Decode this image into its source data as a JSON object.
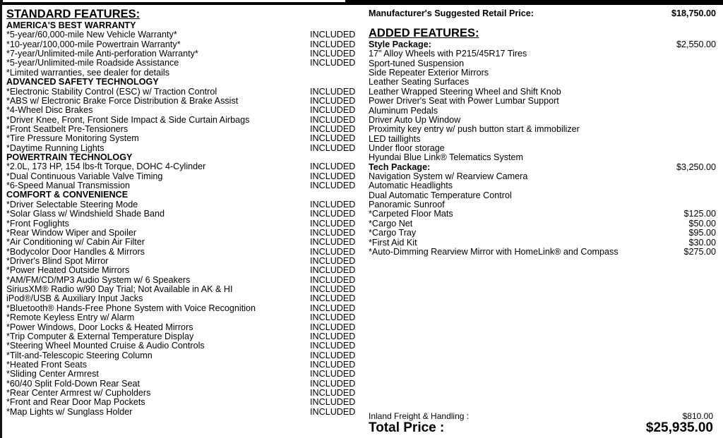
{
  "standard": {
    "title": "STANDARD FEATURES:",
    "sections": [
      {
        "heading": "AMERICA'S BEST WARRANTY",
        "items": [
          {
            "text": "*5-year/60,000-mile New Vehicle Warranty*",
            "status": "INCLUDED"
          },
          {
            "text": "*10-year/100,000-mile Powertrain Warranty*",
            "status": "INCLUDED"
          },
          {
            "text": "*7-year/Unlimited-mile Anti-perforation Warranty*",
            "status": "INCLUDED"
          },
          {
            "text": "*5-year/Unlimited-mile Roadside Assistance",
            "status": "INCLUDED"
          },
          {
            "text": "*Limited warranties, see dealer for details",
            "status": ""
          }
        ]
      },
      {
        "heading": "ADVANCED SAFETY TECHNOLOGY",
        "items": [
          {
            "text": "*Electronic Stability Control (ESC) w/ Traction Control",
            "status": "INCLUDED"
          },
          {
            "text": "*ABS w/ Electronic Brake Force Distribution & Brake Assist",
            "status": "INCLUDED"
          },
          {
            "text": "*4-Wheel Disc Brakes",
            "status": "INCLUDED"
          },
          {
            "text": "*Driver Knee, Front, Front Side Impact & Side Curtain Airbags",
            "status": "INCLUDED"
          },
          {
            "text": "*Front Seatbelt Pre-Tensioners",
            "status": "INCLUDED"
          },
          {
            "text": "*Tire Pressure Monitoring System",
            "status": "INCLUDED"
          },
          {
            "text": "*Daytime Running Lights",
            "status": "INCLUDED"
          }
        ]
      },
      {
        "heading": "POWERTRAIN TECHNOLOGY",
        "items": [
          {
            "text": "*2.0L, 173 HP, 154 lbs-ft Torque, DOHC 4-Cylinder",
            "status": "INCLUDED"
          },
          {
            "text": "*Dual Continuous Variable Valve Timing",
            "status": "INCLUDED"
          },
          {
            "text": "*6-Speed Manual Transmission",
            "status": "INCLUDED"
          }
        ]
      },
      {
        "heading": "COMFORT & CONVENIENCE",
        "items": [
          {
            "text": "*Driver Selectable Steering Mode",
            "status": "INCLUDED"
          },
          {
            "text": "*Solar Glass w/ Windshield Shade Band",
            "status": "INCLUDED"
          },
          {
            "text": "*Front Foglights",
            "status": "INCLUDED"
          },
          {
            "text": "*Rear Window Wiper and Spoiler",
            "status": "INCLUDED"
          },
          {
            "text": "*Air Conditioning w/ Cabin Air Filter",
            "status": "INCLUDED"
          },
          {
            "text": "*Bodycolor Door Handles & Mirrors",
            "status": "INCLUDED"
          },
          {
            "text": "*Driver's Blind Spot Mirror",
            "status": "INCLUDED"
          },
          {
            "text": "*Power Heated Outside Mirrors",
            "status": "INCLUDED"
          },
          {
            "text": "*AM/FM/CD/MP3 Audio System w/ 6 Speakers",
            "status": "INCLUDED"
          },
          {
            "text": "SiriusXM® Radio w/90 Day Trial; Not Available in AK & HI",
            "status": "INCLUDED"
          },
          {
            "text": "iPod®/USB & Auxiliary Input Jacks",
            "status": "INCLUDED"
          },
          {
            "text": "*Bluetooth® Hands-Free Phone System with Voice Recognition",
            "status": "INCLUDED"
          },
          {
            "text": "*Remote Keyless Entry w/ Alarm",
            "status": "INCLUDED"
          },
          {
            "text": "*Power Windows, Door Locks & Heated Mirrors",
            "status": "INCLUDED"
          },
          {
            "text": "*Trip Computer & External Temperature Display",
            "status": "INCLUDED"
          },
          {
            "text": "*Steering Wheel Mounted Cruise & Audio Controls",
            "status": "INCLUDED"
          },
          {
            "text": "*Tilt-and-Telescopic Steering Column",
            "status": "INCLUDED"
          },
          {
            "text": "*Heated Front Seats",
            "status": "INCLUDED"
          },
          {
            "text": "*Sliding Center Armrest",
            "status": "INCLUDED"
          },
          {
            "text": "*60/40 Split Fold-Down Rear Seat",
            "status": "INCLUDED"
          },
          {
            "text": "*Rear Center Armrest w/ Cupholders",
            "status": "INCLUDED"
          },
          {
            "text": "*Front and Rear Door Map Pockets",
            "status": "INCLUDED"
          },
          {
            "text": "*Map Lights w/ Sunglass Holder",
            "status": "INCLUDED"
          }
        ]
      }
    ]
  },
  "msrp": {
    "label": "Manufacturer's Suggested Retail Price:",
    "value": "$18,750.00"
  },
  "added": {
    "title": "ADDED FEATURES:",
    "rows": [
      {
        "text": "Style Package:",
        "price": "$2,550.00",
        "bold": true
      },
      {
        "text": "17\" Alloy Wheels with P215/45R17 Tires",
        "price": ""
      },
      {
        "text": "Sport-tuned Suspension",
        "price": ""
      },
      {
        "text": "Side Repeater Exterior Mirrors",
        "price": ""
      },
      {
        "text": "Leather Seating Surfaces",
        "price": ""
      },
      {
        "text": "Leather Wrapped Steering Wheel and Shift Knob",
        "price": ""
      },
      {
        "text": "Power Driver's Seat with Power Lumbar Support",
        "price": ""
      },
      {
        "text": "Aluminum Pedals",
        "price": ""
      },
      {
        "text": "Driver Auto Up Window",
        "price": ""
      },
      {
        "text": "Proximity key entry w/ push button start & immobilizer",
        "price": ""
      },
      {
        "text": "LED taillights",
        "price": ""
      },
      {
        "text": "Under floor storage",
        "price": ""
      },
      {
        "text": "Hyundai Blue Link® Telematics System",
        "price": ""
      },
      {
        "text": "Tech Package:",
        "price": "$3,250.00",
        "bold": true
      },
      {
        "text": "Navigation System w/ Rearview Camera",
        "price": ""
      },
      {
        "text": "Automatic Headlights",
        "price": ""
      },
      {
        "text": "Dual Automatic Temperature Control",
        "price": ""
      },
      {
        "text": "Panoramic Sunroof",
        "price": ""
      },
      {
        "text": "*Carpeted Floor Mats",
        "price": "$125.00"
      },
      {
        "text": "*Cargo Net",
        "price": "$50.00"
      },
      {
        "text": "*Cargo Tray",
        "price": "$95.00"
      },
      {
        "text": "*First Aid Kit",
        "price": "$30.00"
      },
      {
        "text": "*Auto-Dimming Rearview Mirror with HomeLink® and Compass",
        "price": "$275.00"
      }
    ]
  },
  "freight": {
    "label": "Inland Freight & Handling :",
    "value": "$810.00"
  },
  "total": {
    "label": "Total Price :",
    "value": "$25,935.00"
  }
}
